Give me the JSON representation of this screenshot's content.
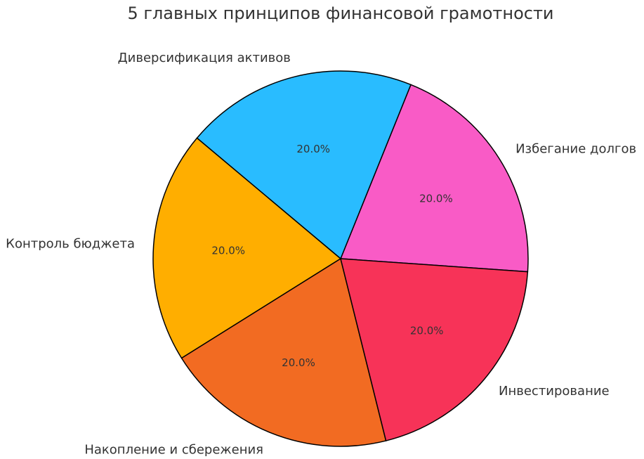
{
  "chart_data": {
    "type": "pie",
    "title": "5 главных принципов финансовой грамотности",
    "categories": [
      "Избегание долгов",
      "Диверсификация активов",
      "Контроль бюджета",
      "Накопление и сбережения",
      "Инвестирование"
    ],
    "values": [
      20.0,
      20.0,
      20.0,
      20.0,
      20.0
    ],
    "value_labels": [
      "20.0%",
      "20.0%",
      "20.0%",
      "20.0%",
      "20.0%"
    ],
    "colors": [
      "#F95BC6",
      "#29BCFF",
      "#FFAE00",
      "#F26B22",
      "#F73358"
    ],
    "legend": "none"
  }
}
